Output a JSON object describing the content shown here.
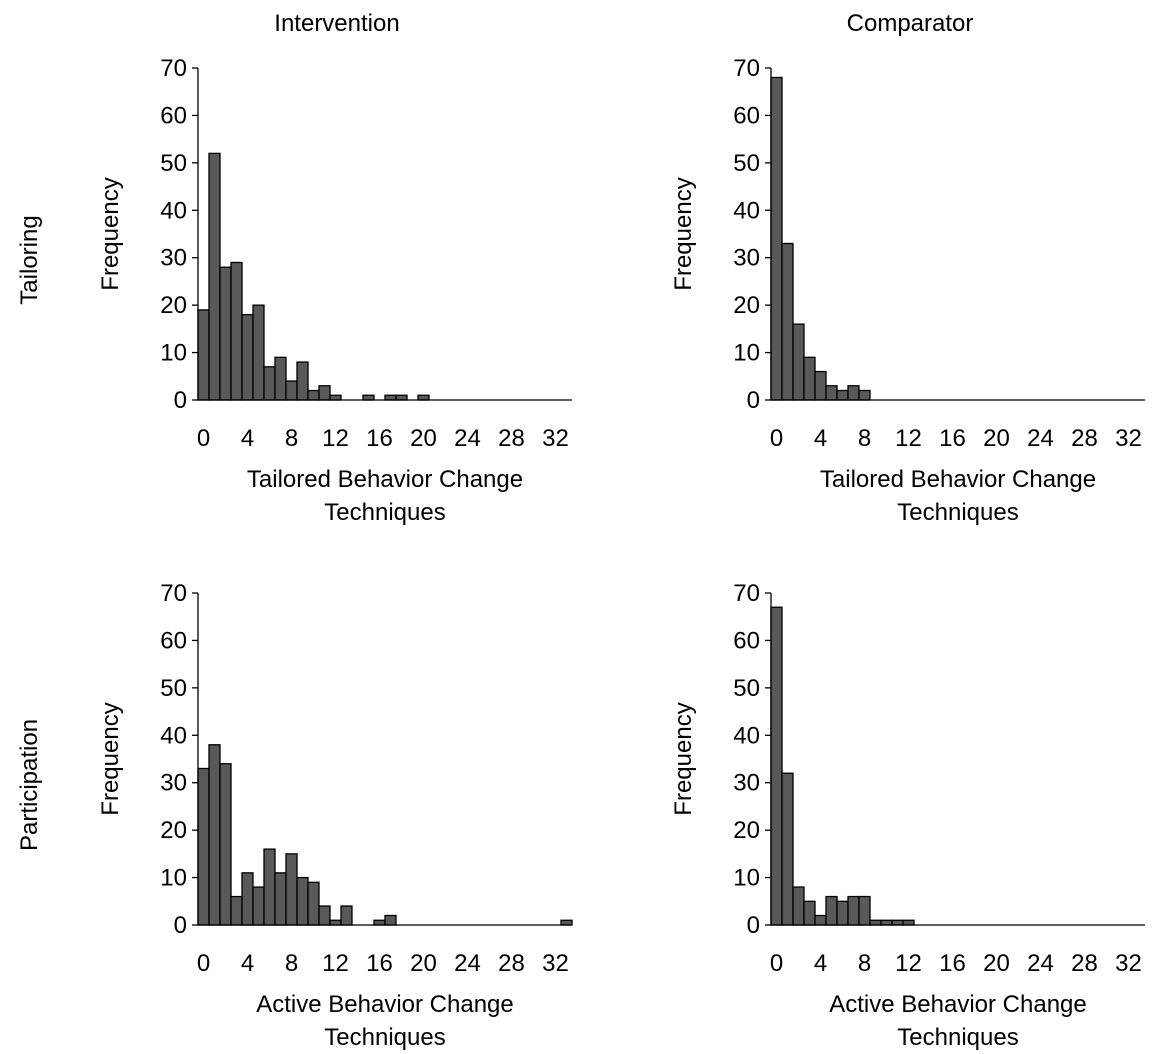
{
  "column_titles": [
    "Intervention",
    "Comparator"
  ],
  "row_titles": [
    "Tailoring",
    "Participation"
  ],
  "chart_data": [
    {
      "type": "bar",
      "column": "Intervention",
      "row": "Tailoring",
      "xlabel": [
        "Tailored Behavior Change",
        "Techniques"
      ],
      "ylabel": "Frequency",
      "ylim": [
        0,
        70
      ],
      "xlim": [
        -0.5,
        33.5
      ],
      "yticks": [
        0,
        10,
        20,
        30,
        40,
        50,
        60,
        70
      ],
      "xticks": [
        0,
        4,
        8,
        12,
        16,
        20,
        24,
        28,
        32
      ],
      "bar_fill": "#595959",
      "categories": [
        0,
        1,
        2,
        3,
        4,
        5,
        6,
        7,
        8,
        9,
        10,
        11,
        12,
        13,
        14,
        15,
        16,
        17,
        18,
        19,
        20,
        21,
        22,
        23,
        24,
        25,
        26,
        27,
        28,
        29,
        30,
        31,
        32,
        33
      ],
      "values": [
        19,
        52,
        28,
        29,
        18,
        20,
        7,
        9,
        4,
        8,
        2,
        3,
        1,
        0,
        0,
        1,
        0,
        1,
        1,
        0,
        1,
        0,
        0,
        0,
        0,
        0,
        0,
        0,
        0,
        0,
        0,
        0,
        0,
        0
      ]
    },
    {
      "type": "bar",
      "column": "Comparator",
      "row": "Tailoring",
      "xlabel": [
        "Tailored Behavior Change",
        "Techniques"
      ],
      "ylabel": "Frequency",
      "ylim": [
        0,
        70
      ],
      "xlim": [
        -0.5,
        33.5
      ],
      "yticks": [
        0,
        10,
        20,
        30,
        40,
        50,
        60,
        70
      ],
      "xticks": [
        0,
        4,
        8,
        12,
        16,
        20,
        24,
        28,
        32
      ],
      "bar_fill": "#595959",
      "categories": [
        0,
        1,
        2,
        3,
        4,
        5,
        6,
        7,
        8,
        9,
        10,
        11,
        12,
        13,
        14,
        15,
        16,
        17,
        18,
        19,
        20,
        21,
        22,
        23,
        24,
        25,
        26,
        27,
        28,
        29,
        30,
        31,
        32,
        33
      ],
      "values": [
        68,
        33,
        16,
        9,
        6,
        3,
        2,
        3,
        2,
        0,
        0,
        0,
        0,
        0,
        0,
        0,
        0,
        0,
        0,
        0,
        0,
        0,
        0,
        0,
        0,
        0,
        0,
        0,
        0,
        0,
        0,
        0,
        0,
        0
      ]
    },
    {
      "type": "bar",
      "column": "Intervention",
      "row": "Participation",
      "xlabel": [
        "Active Behavior Change",
        "Techniques"
      ],
      "ylabel": "Frequency",
      "ylim": [
        0,
        70
      ],
      "xlim": [
        -0.5,
        33.5
      ],
      "yticks": [
        0,
        10,
        20,
        30,
        40,
        50,
        60,
        70
      ],
      "xticks": [
        0,
        4,
        8,
        12,
        16,
        20,
        24,
        28,
        32
      ],
      "bar_fill": "#595959",
      "categories": [
        0,
        1,
        2,
        3,
        4,
        5,
        6,
        7,
        8,
        9,
        10,
        11,
        12,
        13,
        14,
        15,
        16,
        17,
        18,
        19,
        20,
        21,
        22,
        23,
        24,
        25,
        26,
        27,
        28,
        29,
        30,
        31,
        32,
        33
      ],
      "values": [
        33,
        38,
        34,
        6,
        11,
        8,
        16,
        11,
        15,
        10,
        9,
        4,
        1,
        4,
        0,
        0,
        1,
        2,
        0,
        0,
        0,
        0,
        0,
        0,
        0,
        0,
        0,
        0,
        0,
        0,
        0,
        0,
        0,
        1
      ]
    },
    {
      "type": "bar",
      "column": "Comparator",
      "row": "Participation",
      "xlabel": [
        "Active Behavior Change",
        "Techniques"
      ],
      "ylabel": "Frequency",
      "ylim": [
        0,
        70
      ],
      "xlim": [
        -0.5,
        33.5
      ],
      "yticks": [
        0,
        10,
        20,
        30,
        40,
        50,
        60,
        70
      ],
      "xticks": [
        0,
        4,
        8,
        12,
        16,
        20,
        24,
        28,
        32
      ],
      "bar_fill": "#595959",
      "categories": [
        0,
        1,
        2,
        3,
        4,
        5,
        6,
        7,
        8,
        9,
        10,
        11,
        12,
        13,
        14,
        15,
        16,
        17,
        18,
        19,
        20,
        21,
        22,
        23,
        24,
        25,
        26,
        27,
        28,
        29,
        30,
        31,
        32,
        33
      ],
      "values": [
        67,
        32,
        8,
        5,
        2,
        6,
        5,
        6,
        6,
        1,
        1,
        1,
        1,
        0,
        0,
        0,
        0,
        0,
        0,
        0,
        0,
        0,
        0,
        0,
        0,
        0,
        0,
        0,
        0,
        0,
        0,
        0,
        0,
        0
      ]
    }
  ]
}
